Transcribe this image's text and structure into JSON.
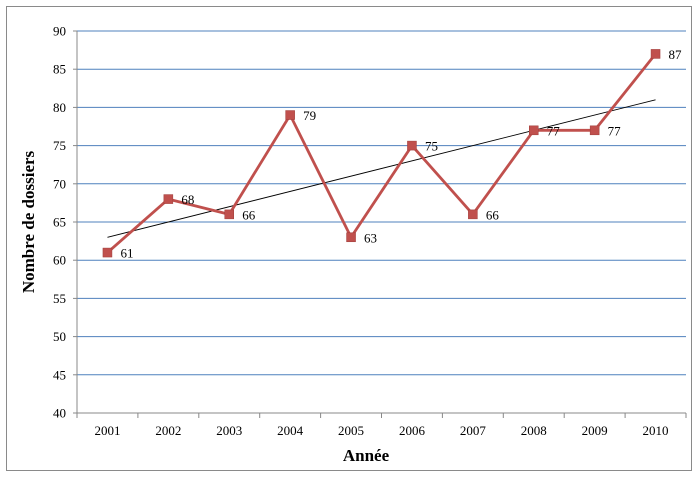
{
  "chart_data": {
    "type": "line",
    "title": "",
    "xlabel": "Année",
    "ylabel": "Nombre de dossiers",
    "ylim": [
      40,
      90
    ],
    "yticks": [
      "40",
      "45",
      "50",
      "55",
      "60",
      "65",
      "70",
      "75",
      "80",
      "85",
      "90"
    ],
    "categories": [
      "2001",
      "2002",
      "2003",
      "2004",
      "2005",
      "2006",
      "2007",
      "2008",
      "2009",
      "2010"
    ],
    "series": [
      {
        "values": [
          61,
          68,
          66,
          79,
          63,
          75,
          66,
          77,
          77,
          87
        ],
        "labels": [
          "61",
          "68",
          "66",
          "79",
          "63",
          "75",
          "66",
          "77",
          "77",
          "87"
        ],
        "color": "#c0504d",
        "marker": "square"
      }
    ],
    "trendline": {
      "type": "linear",
      "start": 63,
      "end": 81,
      "color": "#000000"
    },
    "grid": {
      "horizontal": true,
      "color": "#4f81bd"
    },
    "legend": "none"
  }
}
